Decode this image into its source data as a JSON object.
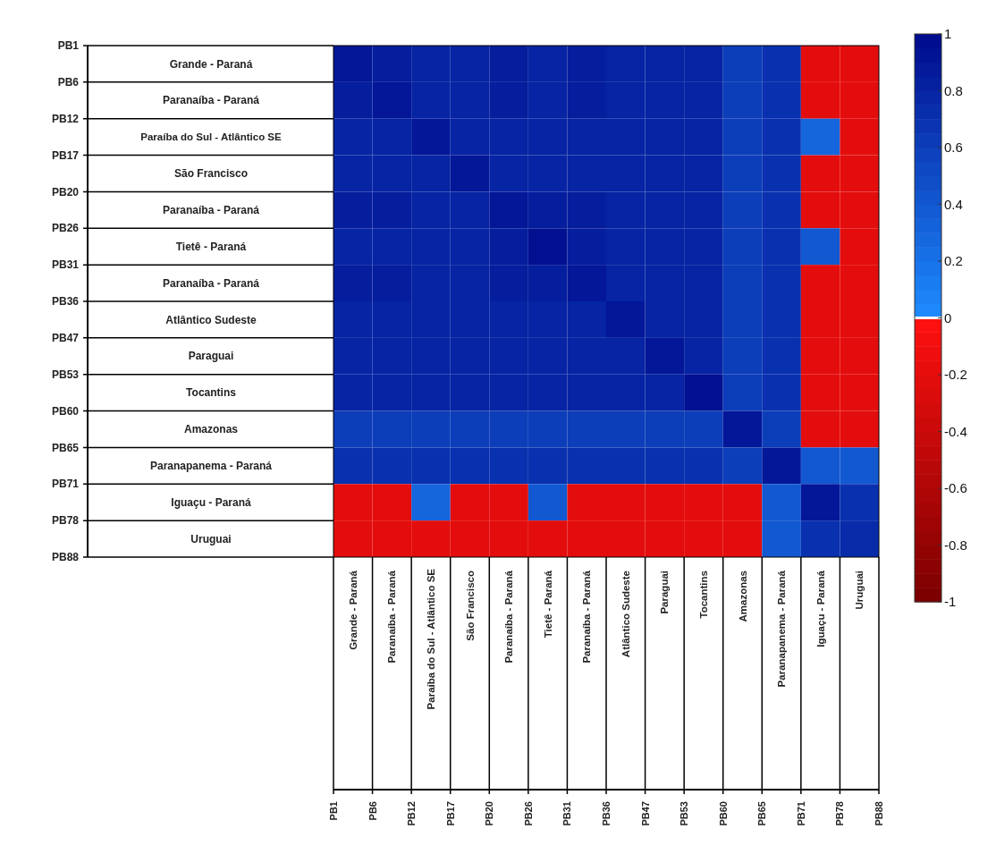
{
  "chart_data": {
    "type": "heatmap",
    "categories": [
      "Grande - Paraná",
      "Paranaíba - Paraná",
      "Paraíba do Sul - Atlântico SE",
      "São Francisco",
      "Paranaíba - Paraná",
      "Tietê - Paraná",
      "Paranaíba - Paraná",
      "Atlântico Sudeste",
      "Paraguai",
      "Tocantins",
      "Amazonas",
      "Paranapanema - Paraná",
      "Iguaçu - Paraná",
      "Uruguai"
    ],
    "y_categories": [
      "Grande - Paraná",
      "Paranaíba - Paraná",
      "Paraíba do Sul - Atlântico SE",
      "São Francisco",
      "Paranaíba - Paraná",
      "Tietê - Paraná",
      "Paranaíba - Paraná",
      "Atlântico Sudeste",
      "Paraguai",
      "Tocantins",
      "Amazonas",
      "Paranapanema - Paraná",
      "Iguaçu - Paraná",
      "Uruguai"
    ],
    "annotations": [
      "PB1",
      "PB6",
      "PB12",
      "PB17",
      "PB20",
      "PB26",
      "PB31",
      "PB36",
      "PB47",
      "PB53",
      "PB60",
      "PB65",
      "PB71",
      "PB78",
      "PB88"
    ],
    "cells": [
      [
        0.9,
        0.85,
        0.8,
        0.8,
        0.85,
        0.8,
        0.85,
        0.8,
        0.8,
        0.8,
        0.6,
        0.7,
        -0.2,
        -0.2
      ],
      [
        0.85,
        0.9,
        0.8,
        0.8,
        0.85,
        0.8,
        0.85,
        0.8,
        0.8,
        0.8,
        0.6,
        0.7,
        -0.2,
        -0.2
      ],
      [
        0.8,
        0.8,
        0.9,
        0.8,
        0.8,
        0.8,
        0.8,
        0.8,
        0.8,
        0.8,
        0.6,
        0.7,
        0.3,
        -0.2
      ],
      [
        0.8,
        0.8,
        0.8,
        0.9,
        0.8,
        0.8,
        0.8,
        0.8,
        0.8,
        0.8,
        0.6,
        0.7,
        -0.2,
        -0.2
      ],
      [
        0.85,
        0.85,
        0.8,
        0.8,
        0.9,
        0.85,
        0.85,
        0.8,
        0.8,
        0.8,
        0.6,
        0.7,
        -0.2,
        -0.2
      ],
      [
        0.8,
        0.8,
        0.8,
        0.8,
        0.85,
        0.95,
        0.85,
        0.8,
        0.8,
        0.8,
        0.6,
        0.7,
        0.4,
        -0.2
      ],
      [
        0.85,
        0.85,
        0.8,
        0.8,
        0.85,
        0.85,
        0.9,
        0.8,
        0.8,
        0.8,
        0.6,
        0.7,
        -0.2,
        -0.2
      ],
      [
        0.8,
        0.8,
        0.8,
        0.8,
        0.8,
        0.8,
        0.8,
        0.9,
        0.8,
        0.8,
        0.6,
        0.7,
        -0.2,
        -0.2
      ],
      [
        0.8,
        0.8,
        0.8,
        0.8,
        0.8,
        0.8,
        0.8,
        0.8,
        0.9,
        0.8,
        0.6,
        0.7,
        -0.2,
        -0.2
      ],
      [
        0.8,
        0.8,
        0.8,
        0.8,
        0.8,
        0.8,
        0.8,
        0.8,
        0.8,
        0.95,
        0.6,
        0.7,
        -0.2,
        -0.2
      ],
      [
        0.6,
        0.6,
        0.6,
        0.6,
        0.6,
        0.6,
        0.6,
        0.6,
        0.6,
        0.6,
        0.9,
        0.6,
        -0.2,
        -0.2
      ],
      [
        0.7,
        0.7,
        0.7,
        0.7,
        0.7,
        0.7,
        0.7,
        0.7,
        0.7,
        0.7,
        0.6,
        0.9,
        0.4,
        0.4
      ],
      [
        -0.2,
        -0.2,
        0.3,
        -0.2,
        -0.2,
        0.4,
        -0.2,
        -0.2,
        -0.2,
        -0.2,
        -0.2,
        0.4,
        0.9,
        0.7
      ],
      [
        -0.2,
        -0.2,
        -0.2,
        -0.2,
        -0.2,
        -0.2,
        -0.2,
        -0.2,
        -0.2,
        -0.2,
        -0.2,
        0.4,
        0.7,
        0.75
      ]
    ],
    "clim": [
      -1,
      1
    ],
    "cticks": [
      1,
      0.8,
      0.6,
      0.4,
      0.2,
      0,
      -0.2,
      -0.4,
      -0.6,
      -0.8,
      -1
    ]
  }
}
